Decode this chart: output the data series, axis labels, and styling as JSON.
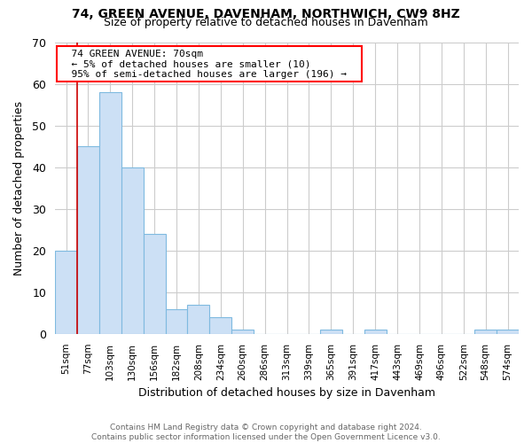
{
  "title1": "74, GREEN AVENUE, DAVENHAM, NORTHWICH, CW9 8HZ",
  "title2": "Size of property relative to detached houses in Davenham",
  "xlabel": "Distribution of detached houses by size in Davenham",
  "ylabel": "Number of detached properties",
  "footnote1": "Contains HM Land Registry data © Crown copyright and database right 2024.",
  "footnote2": "Contains public sector information licensed under the Open Government Licence v3.0.",
  "annotation_line1": "74 GREEN AVENUE: 70sqm",
  "annotation_line2": "← 5% of detached houses are smaller (10)",
  "annotation_line3": "95% of semi-detached houses are larger (196) →",
  "bar_labels": [
    "51sqm",
    "77sqm",
    "103sqm",
    "130sqm",
    "156sqm",
    "182sqm",
    "208sqm",
    "234sqm",
    "260sqm",
    "286sqm",
    "313sqm",
    "339sqm",
    "365sqm",
    "391sqm",
    "417sqm",
    "443sqm",
    "469sqm",
    "496sqm",
    "522sqm",
    "548sqm",
    "574sqm"
  ],
  "bar_values": [
    20,
    45,
    58,
    40,
    24,
    6,
    7,
    4,
    1,
    0,
    0,
    0,
    1,
    0,
    1,
    0,
    0,
    0,
    0,
    1,
    1
  ],
  "bar_color": "#cce0f5",
  "bar_edge_color": "#7fbae0",
  "marker_bin": 1,
  "marker_color": "#cc0000",
  "ylim": [
    0,
    70
  ],
  "yticks": [
    0,
    10,
    20,
    30,
    40,
    50,
    60,
    70
  ],
  "grid_color": "#cccccc",
  "bg_color": "#ffffff",
  "title1_fontsize": 10,
  "title2_fontsize": 9
}
